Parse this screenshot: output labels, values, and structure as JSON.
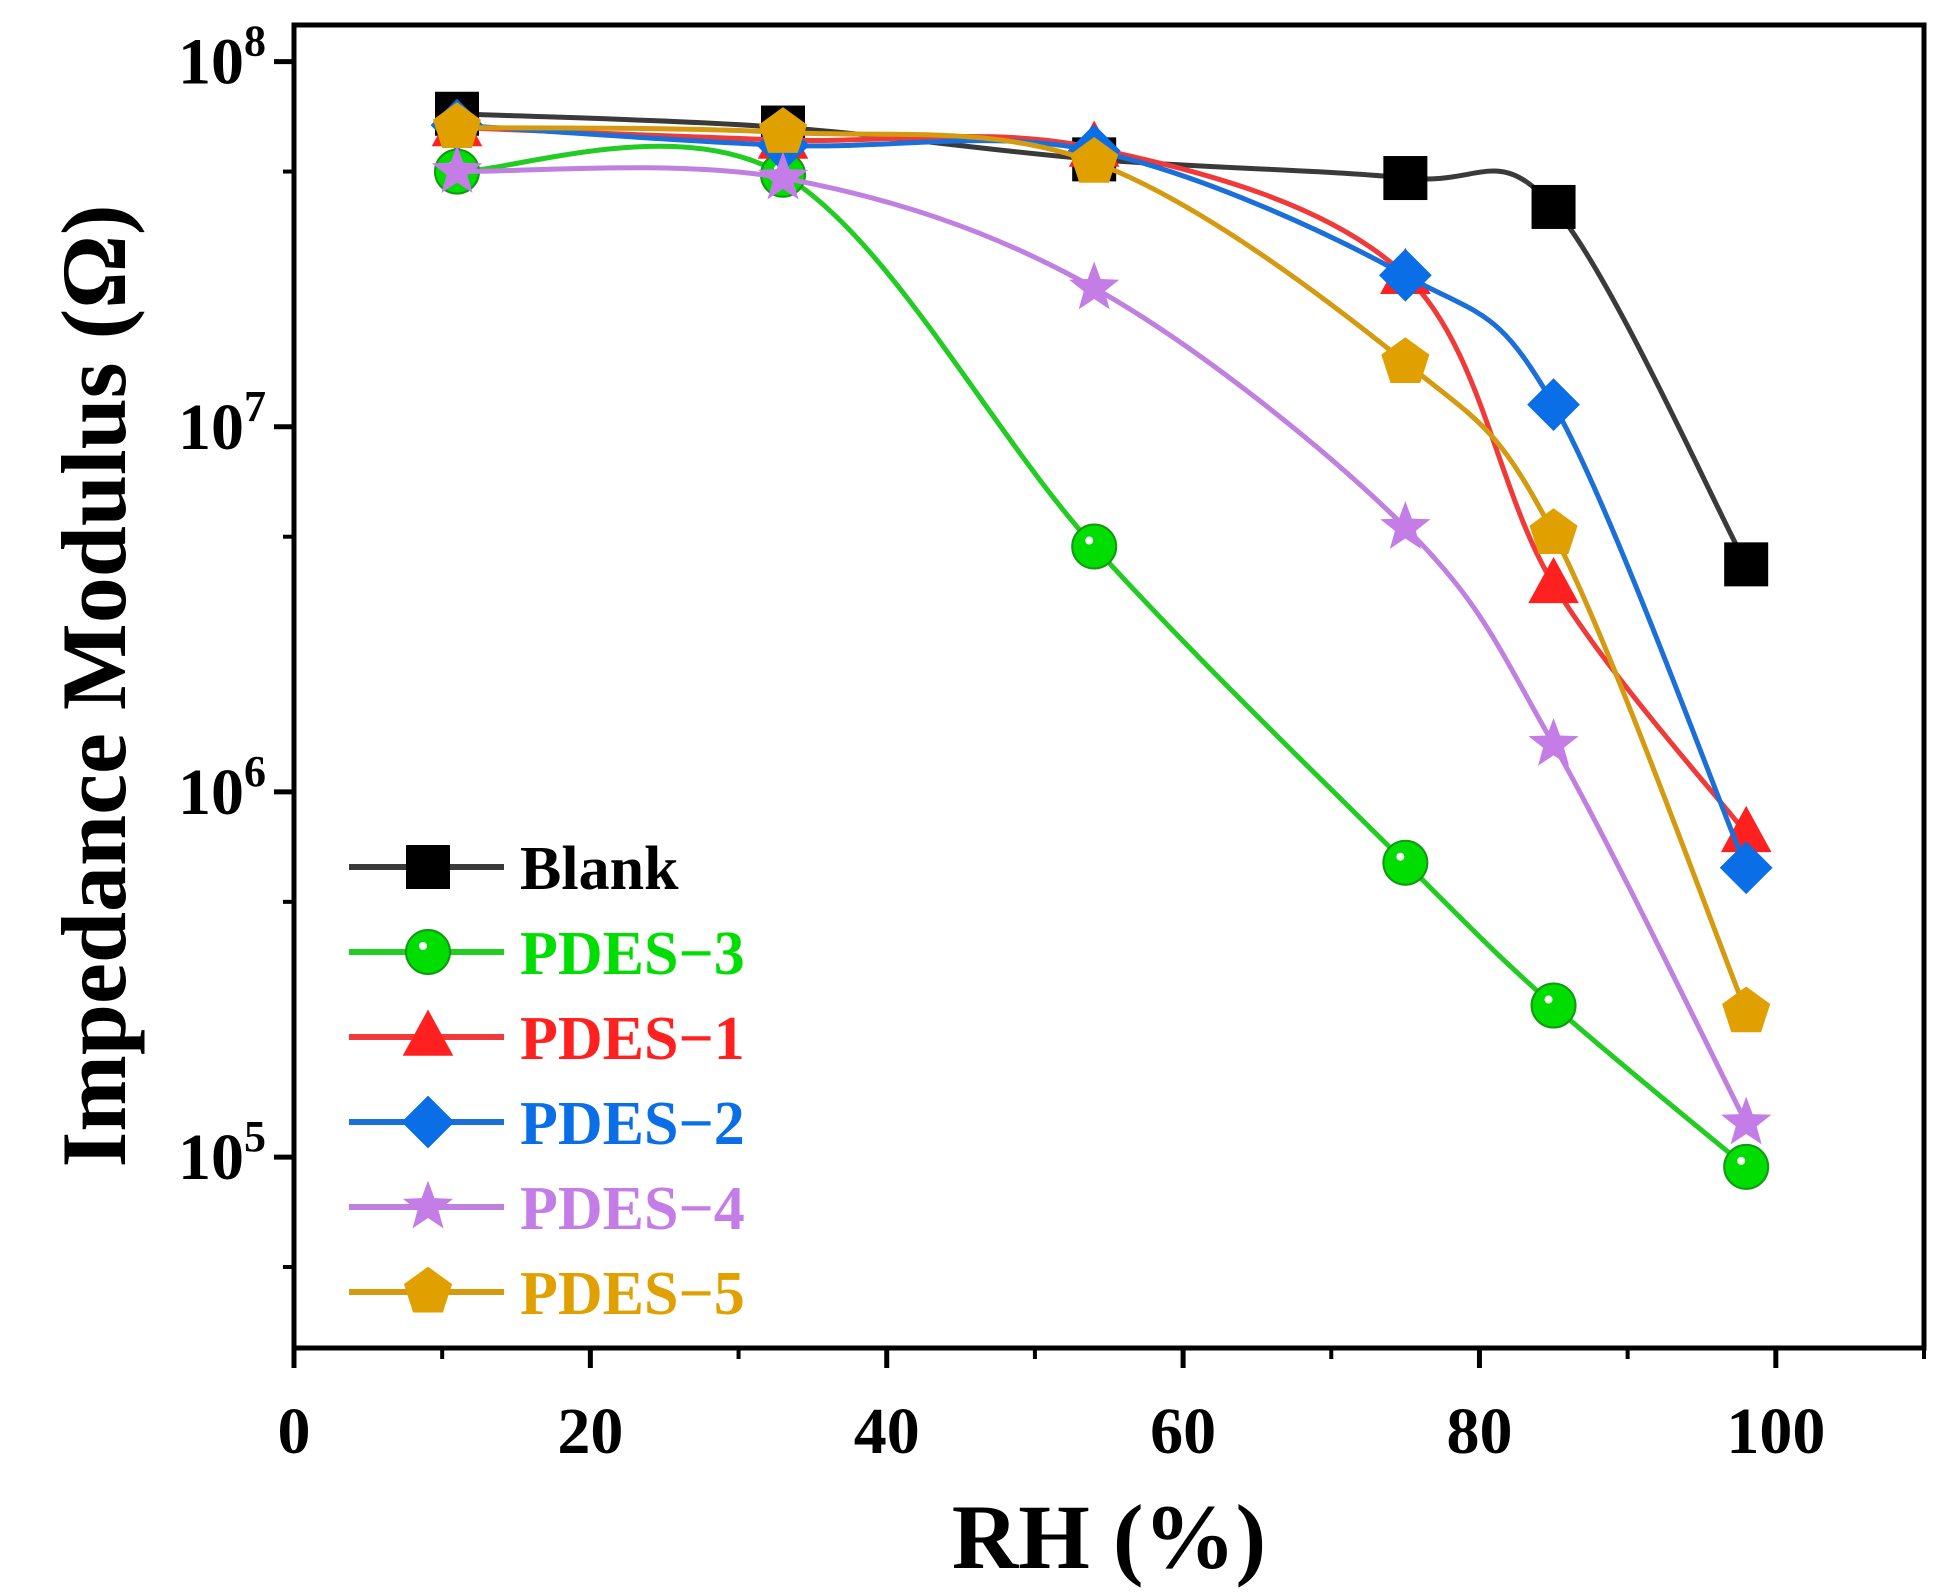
{
  "chart_data": {
    "type": "line",
    "title": "",
    "xlabel": "RH (%)",
    "ylabel": "Impedance Modulus (Ω)",
    "xlim": [
      0,
      110
    ],
    "ylim": [
      30000,
      126000000
    ],
    "yscale": "log",
    "grid": false,
    "legend_placement": "bottom-left",
    "x": [
      11,
      33,
      54,
      75,
      85,
      98
    ],
    "xticks": [
      0,
      20,
      40,
      60,
      80,
      100
    ],
    "xtick_labels": [
      "0",
      "20",
      "40",
      "60",
      "80",
      "100"
    ],
    "yticks": [
      100000,
      1000000,
      10000000,
      100000000
    ],
    "ytick_labels": [
      {
        "base": "10",
        "exp": "5"
      },
      {
        "base": "10",
        "exp": "6"
      },
      {
        "base": "10",
        "exp": "7"
      },
      {
        "base": "10",
        "exp": "8"
      }
    ],
    "series": [
      {
        "name": "Blank",
        "color": "#000000",
        "line_color": "#3a3a3a",
        "marker": "square",
        "values": [
          72000000,
          66000000,
          54000000,
          48000000,
          40000000,
          4200000
        ]
      },
      {
        "name": "PDES−3",
        "color": "#00dd00",
        "line_color": "#22cc22",
        "marker": "circle",
        "values": [
          50000000,
          49000000,
          4700000,
          640000,
          260000,
          94000
        ]
      },
      {
        "name": "PDES−1",
        "color": "#ff2020",
        "line_color": "#f03a3a",
        "marker": "triangle",
        "values": [
          66000000,
          61000000,
          58000000,
          26000000,
          3700000,
          770000
        ]
      },
      {
        "name": "PDES−2",
        "color": "#0a6ee6",
        "line_color": "#1a6fd8",
        "marker": "diamond",
        "values": [
          67000000,
          59000000,
          57000000,
          26000000,
          11500000,
          620000
        ]
      },
      {
        "name": "PDES−4",
        "color": "#c47ce6",
        "line_color": "#c080e0",
        "marker": "star",
        "values": [
          50000000,
          48000000,
          24000000,
          5300000,
          1350000,
          124000
        ]
      },
      {
        "name": "PDES−5",
        "color": "#e0a000",
        "line_color": "#d49a10",
        "marker": "pentagon",
        "values": [
          66000000,
          64000000,
          53000000,
          15000000,
          5100000,
          250000
        ]
      }
    ]
  }
}
